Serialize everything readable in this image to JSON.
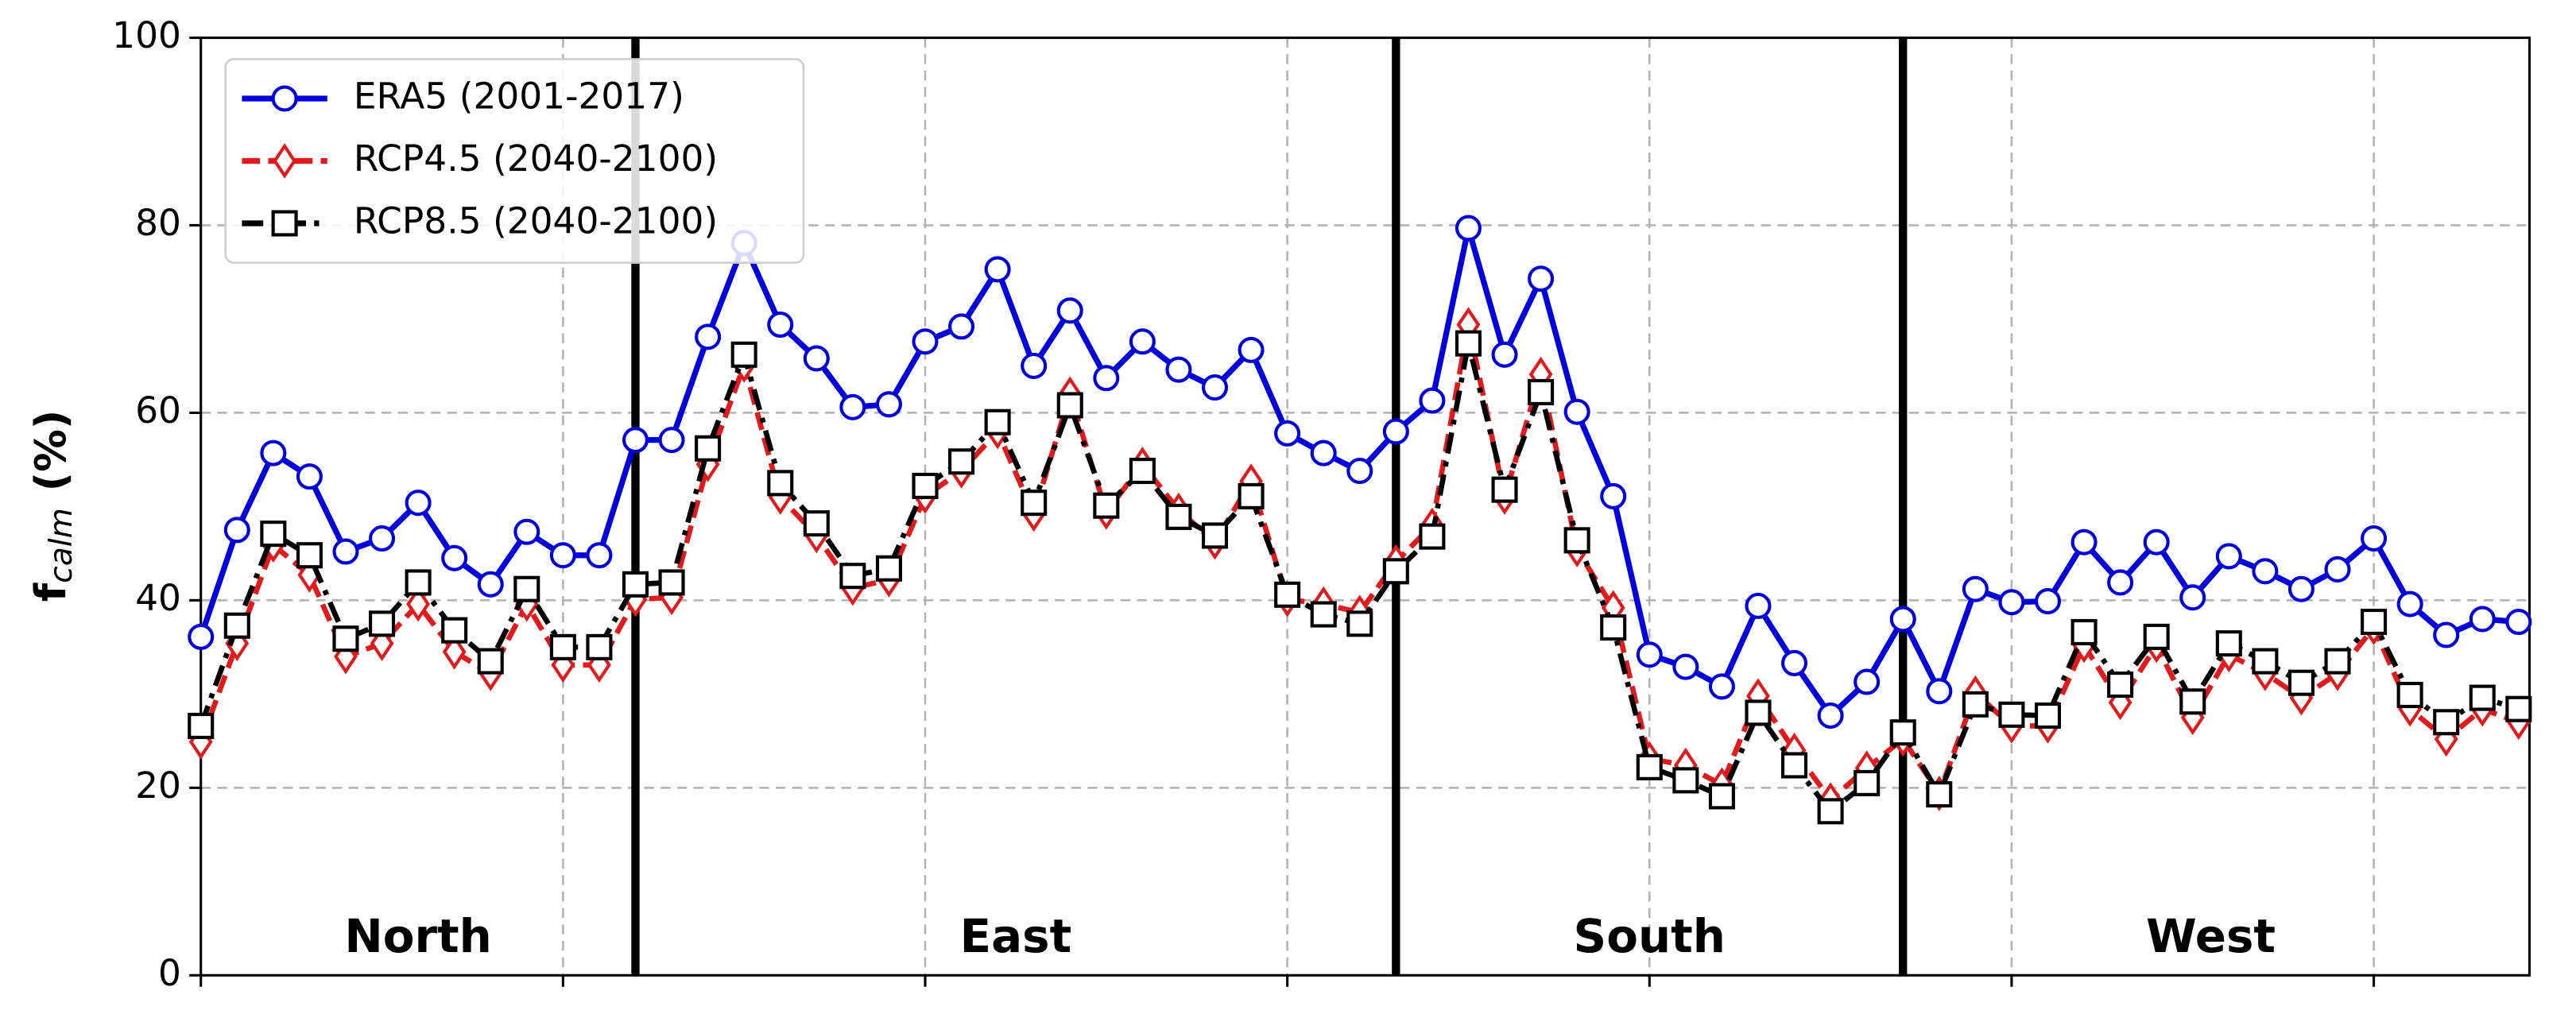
{
  "chart_data": {
    "type": "line",
    "ylabel": {
      "main": "f",
      "sub": "calm",
      "unit": "(%)"
    },
    "x": [
      0,
      1,
      2,
      3,
      4,
      5,
      6,
      7,
      8,
      9,
      10,
      11,
      12,
      13,
      14,
      15,
      16,
      17,
      18,
      19,
      20,
      21,
      22,
      23,
      24,
      25,
      26,
      27,
      28,
      29,
      30,
      31,
      32,
      33,
      34,
      35,
      36,
      37,
      38,
      39,
      40,
      41,
      42,
      43,
      44,
      45,
      46,
      47,
      48,
      49,
      50,
      51,
      52,
      53,
      54,
      55,
      56,
      57,
      58,
      59,
      60,
      61,
      62,
      63,
      64
    ],
    "xlim": [
      0,
      64.3
    ],
    "xticks": [
      0,
      10,
      20,
      30,
      40,
      50,
      60
    ],
    "ylim": [
      0,
      100
    ],
    "yticks": [
      0,
      20,
      40,
      60,
      80,
      100
    ],
    "grid": true,
    "legend": "upper left",
    "dividers": [
      12,
      33,
      47
    ],
    "regions": [
      "North",
      "East",
      "South",
      "West"
    ],
    "series": [
      {
        "name": "ERA5 (2001-2017)",
        "color": "#0000dd",
        "linestyle": "solid",
        "marker": "circle",
        "values": [
          36.1,
          47.5,
          55.7,
          53.2,
          45.2,
          46.6,
          50.4,
          44.5,
          41.7,
          47.3,
          44.8,
          44.8,
          57.1,
          57.1,
          68.1,
          78.1,
          69.4,
          65.8,
          60.6,
          60.9,
          67.6,
          69.2,
          75.3,
          65.0,
          70.9,
          63.7,
          67.6,
          64.6,
          62.7,
          66.7,
          57.8,
          55.7,
          53.8,
          58.0,
          61.3,
          79.7,
          66.2,
          74.3,
          60.1,
          51.1,
          34.2,
          32.9,
          30.8,
          39.4,
          33.3,
          27.7,
          31.3,
          38.0,
          30.3,
          41.2,
          39.8,
          39.9,
          46.2,
          41.9,
          46.2,
          40.3,
          44.7,
          43.1,
          41.2,
          43.3,
          46.6,
          39.6,
          36.3,
          38.0,
          37.7
        ]
      },
      {
        "name": "RCP4.5 (2040-2100)",
        "color": "#e31a1c",
        "linestyle": "dashed",
        "marker": "diamond",
        "values": [
          24.9,
          35.4,
          45.9,
          42.7,
          34.0,
          35.4,
          39.6,
          34.5,
          32.2,
          39.6,
          33.1,
          33.1,
          40.1,
          40.3,
          54.5,
          65.1,
          51.0,
          46.9,
          41.3,
          42.2,
          51.1,
          53.8,
          58.0,
          49.2,
          62.0,
          49.4,
          54.5,
          49.6,
          46.2,
          52.7,
          40.1,
          39.6,
          38.7,
          44.1,
          48.0,
          69.4,
          51.0,
          64.1,
          45.4,
          39.2,
          23.1,
          22.4,
          20.3,
          29.8,
          24.0,
          18.7,
          22.1,
          25.2,
          19.4,
          30.1,
          26.6,
          26.6,
          35.2,
          29.1,
          35.2,
          27.5,
          34.2,
          32.2,
          29.6,
          32.2,
          37.1,
          28.4,
          25.2,
          28.4,
          27.0
        ]
      },
      {
        "name": "RCP8.5 (2040-2100)",
        "color": "#000000",
        "linestyle": "dashdot",
        "marker": "square",
        "values": [
          26.6,
          37.3,
          47.1,
          44.8,
          35.9,
          37.5,
          41.9,
          36.8,
          33.5,
          41.2,
          35.0,
          35.0,
          41.7,
          41.9,
          56.2,
          66.2,
          52.5,
          48.2,
          42.6,
          43.4,
          52.2,
          54.8,
          59.0,
          50.4,
          60.8,
          50.1,
          53.8,
          48.9,
          46.9,
          51.1,
          40.6,
          38.5,
          37.5,
          43.1,
          46.8,
          67.4,
          51.8,
          62.2,
          46.4,
          37.1,
          22.2,
          20.8,
          19.1,
          28.0,
          22.4,
          17.5,
          20.5,
          25.9,
          19.3,
          28.9,
          27.8,
          27.7,
          36.6,
          31.0,
          36.1,
          29.2,
          35.4,
          33.5,
          31.2,
          33.5,
          37.7,
          29.9,
          27.0,
          29.6,
          28.4
        ]
      }
    ]
  }
}
